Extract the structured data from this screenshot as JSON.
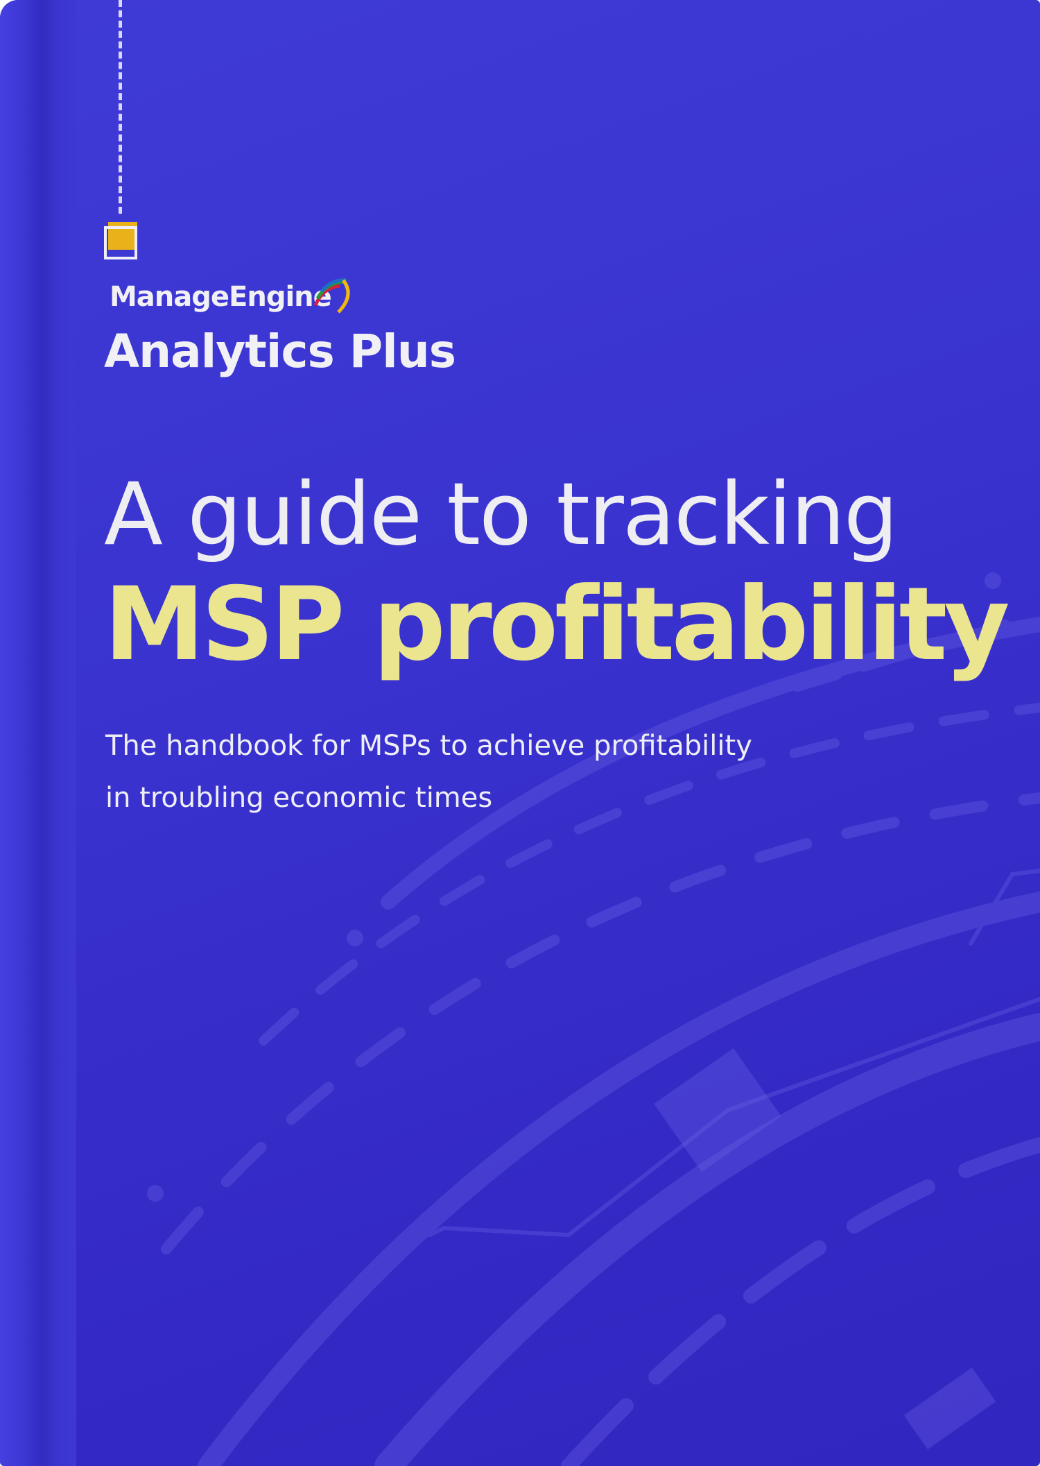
{
  "brand": {
    "company": "ManageEngine",
    "product": "Analytics Plus"
  },
  "title": {
    "line1": "A guide to tracking",
    "line2": "MSP profitability"
  },
  "subtitle": {
    "line1": "The handbook for MSPs to achieve profitability",
    "line2": "in troubling economic times"
  },
  "colors": {
    "background": "#3a33cf",
    "title_accent": "#ebe590",
    "square_accent": "#eab21a",
    "text": "#eeeef2"
  }
}
